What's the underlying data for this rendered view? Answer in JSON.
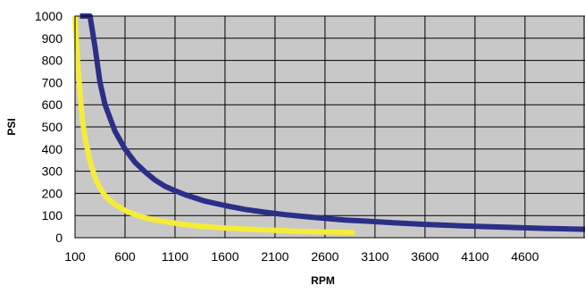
{
  "chart_data": {
    "type": "line",
    "title": "",
    "xlabel": "RPM",
    "ylabel": "PSI",
    "xlim": [
      100,
      5200
    ],
    "ylim": [
      0,
      1000
    ],
    "x_ticks": [
      100,
      600,
      1100,
      1600,
      2100,
      2600,
      3100,
      3600,
      4100,
      4600
    ],
    "y_ticks": [
      0,
      100,
      200,
      300,
      400,
      500,
      600,
      700,
      800,
      900,
      1000
    ],
    "grid": true,
    "legend": "none",
    "plot_background": "#c8c8c8",
    "series": [
      {
        "color": "#2b2f87",
        "x": [
          150,
          200,
          250,
          300,
          350,
          400,
          500,
          600,
          700,
          800,
          900,
          1000,
          1100,
          1200,
          1400,
          1600,
          1800,
          2000,
          2200,
          2400,
          2600,
          2800,
          3000,
          3300,
          3600,
          4000,
          4400,
          4800,
          5200
        ],
        "y": [
          1000,
          1000,
          1000,
          860,
          700,
          600,
          480,
          400,
          340,
          297,
          260,
          232,
          212,
          194,
          165,
          145,
          128,
          115,
          104,
          95,
          87,
          80,
          75,
          67,
          60,
          53,
          47,
          42,
          38
        ]
      },
      {
        "color": "#f5ec3a",
        "x": [
          100,
          125,
          150,
          175,
          200,
          250,
          300,
          350,
          400,
          450,
          500,
          600,
          700,
          800,
          900,
          1000,
          1200,
          1400,
          1600,
          1800,
          2000,
          2200,
          2400,
          2600,
          2800,
          2900
        ],
        "y": [
          1000,
          800,
          650,
          530,
          450,
          345,
          270,
          225,
          190,
          168,
          150,
          123,
          104,
          90,
          80,
          72,
          59,
          50,
          44,
          39,
          35,
          31,
          28,
          26,
          24,
          22
        ]
      }
    ]
  }
}
